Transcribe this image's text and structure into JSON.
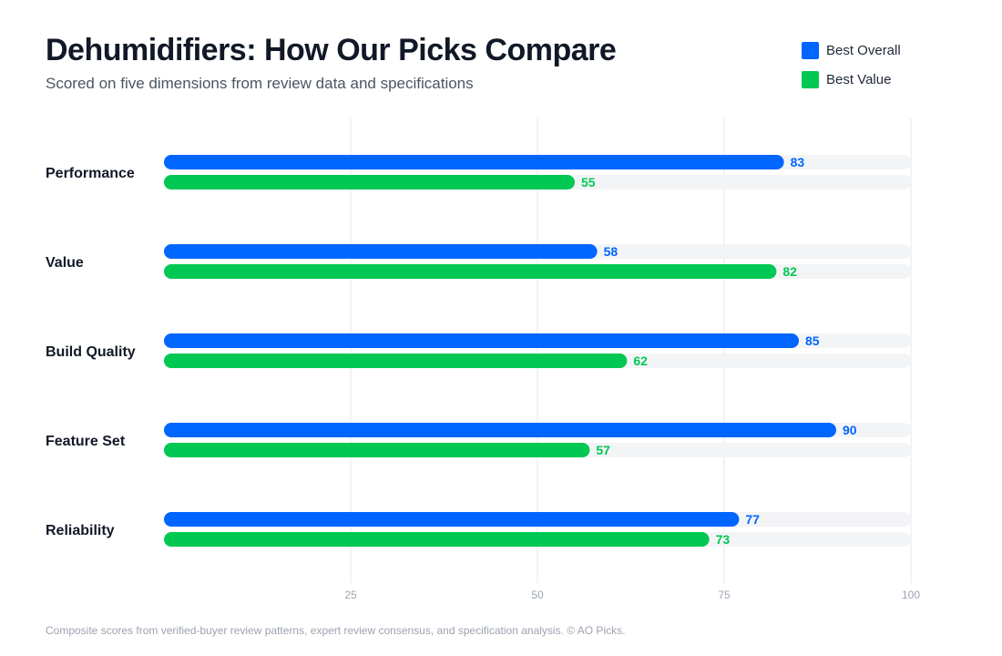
{
  "header": {
    "title": "Dehumidifiers: How Our Picks Compare",
    "subtitle": "Scored on five dimensions from review data and specifications"
  },
  "footnote": "Composite scores from verified-buyer review patterns, expert review consensus, and specification analysis. © AO Picks.",
  "colors": {
    "track": "#f3f4f6",
    "grid": "#e5e7eb"
  },
  "chart_data": {
    "type": "bar",
    "orientation": "horizontal",
    "categories": [
      "Performance",
      "Value",
      "Build Quality",
      "Feature Set",
      "Reliability"
    ],
    "series": [
      {
        "name": "Best Overall",
        "color": "#0066ff",
        "values": [
          83,
          58,
          85,
          90,
          77
        ]
      },
      {
        "name": "Best Value",
        "color": "#00c853",
        "values": [
          55,
          82,
          62,
          57,
          73
        ]
      }
    ],
    "xlim": [
      0,
      100
    ],
    "xticks": [
      25,
      50,
      75,
      100
    ],
    "grid": true,
    "legend": "top-right"
  }
}
